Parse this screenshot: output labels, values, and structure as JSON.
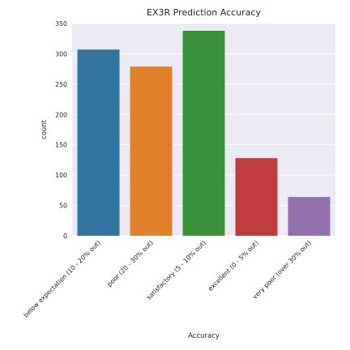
{
  "chart_data": {
    "type": "bar",
    "title": "EX3R Prediction Accuracy",
    "xlabel": "Accuracy",
    "ylabel": "count",
    "categories": [
      "below expectation (10 - 20% out)",
      "poor (20 - 30% out)",
      "satisfactory (5 - 10% out)",
      "excellent (0 - 5% out)",
      "very poor (over 30% out)"
    ],
    "values": [
      307,
      279,
      338,
      128,
      64
    ],
    "colors": [
      "#3274a1",
      "#e1812c",
      "#3a923a",
      "#c03d3e",
      "#9372b2"
    ],
    "ylim": [
      0,
      350
    ],
    "yticks": [
      0,
      50,
      100,
      150,
      200,
      250,
      300,
      350
    ],
    "grid": true,
    "background": "#eaeaf2",
    "grid_color": "#ffffff"
  }
}
